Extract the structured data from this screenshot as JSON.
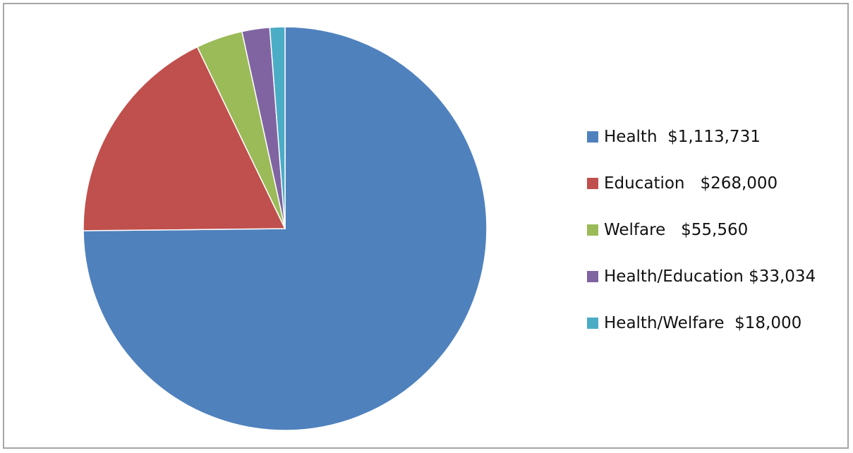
{
  "chart_data": {
    "type": "pie",
    "title": "",
    "legend_position": "right",
    "categories": [
      "Health",
      "Education",
      "Welfare",
      "Health/Education",
      "Health/Welfare"
    ],
    "values": [
      1113731,
      268000,
      55560,
      33034,
      18000
    ],
    "legend_labels": [
      "Health  $1,113,731",
      "Education   $268,000",
      "Welfare   $55,560",
      "Health/Education $33,034",
      "Health/Welfare  $18,000"
    ],
    "colors": [
      "#4f81bd",
      "#c0504d",
      "#9bbb59",
      "#8064a2",
      "#4bacc6"
    ]
  }
}
